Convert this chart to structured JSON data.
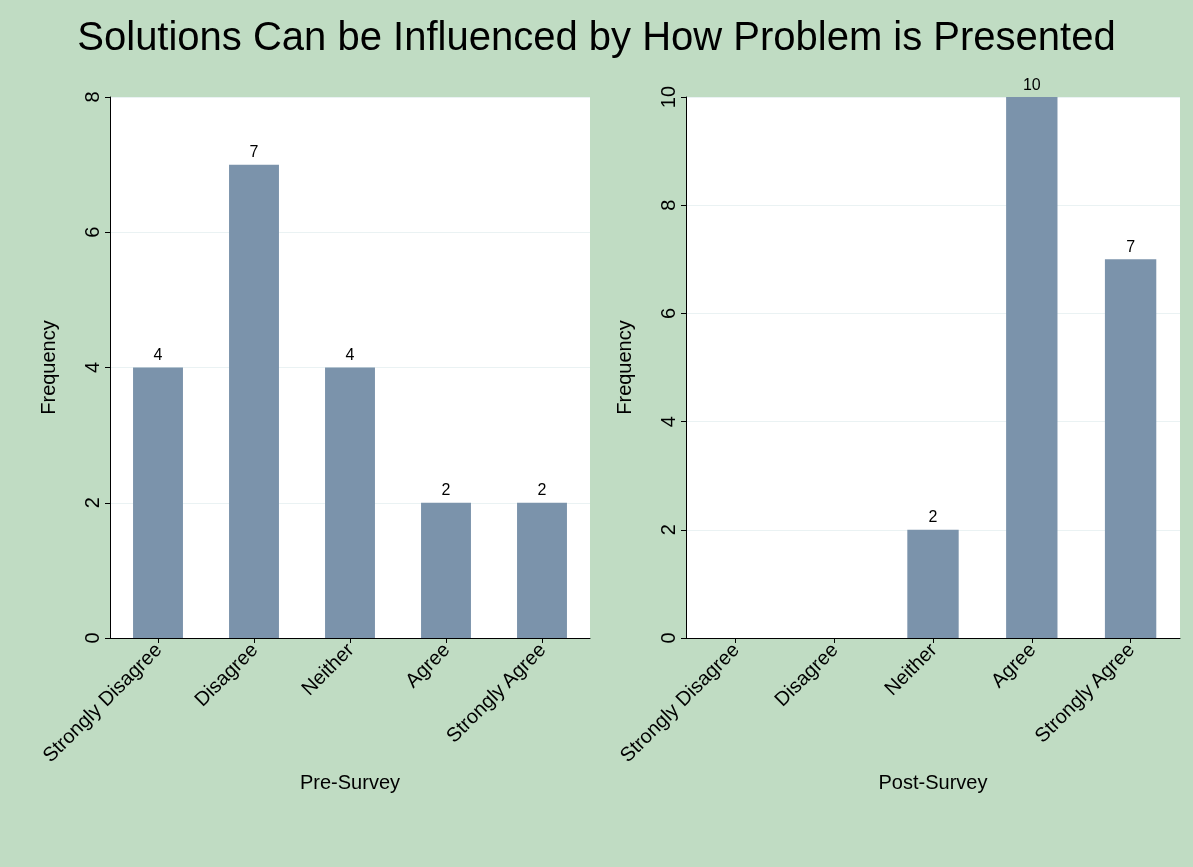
{
  "chart_data": [
    {
      "type": "bar",
      "title": "Solutions Can be Influenced by How Problem is Presented",
      "categories": [
        "Strongly Disagree",
        "Disagree",
        "Neither",
        "Agree",
        "Strongly Agree"
      ],
      "series": [
        {
          "color": "#7b93ab",
          "values": [
            4,
            7,
            4,
            2,
            2
          ]
        }
      ],
      "ylim": [
        0,
        8
      ],
      "yticks": [
        0,
        2,
        4,
        6,
        8
      ],
      "xlabel": "Pre-Survey",
      "ylabel": "Frequency",
      "grid": "y",
      "data_labels": true
    },
    {
      "type": "bar",
      "categories": [
        "Strongly Disagree",
        "Disagree",
        "Neither",
        "Agree",
        "Strongly Agree"
      ],
      "series": [
        {
          "color": "#7b93ab",
          "values": [
            0,
            0,
            2,
            10,
            7
          ],
          "value_labels": [
            null,
            null,
            "2",
            "10",
            "7"
          ]
        }
      ],
      "ylim": [
        0,
        10
      ],
      "yticks": [
        0,
        2,
        4,
        6,
        8,
        10
      ],
      "xlabel": "Post-Survey",
      "ylabel": "Frequency",
      "grid": "y"
    }
  ]
}
